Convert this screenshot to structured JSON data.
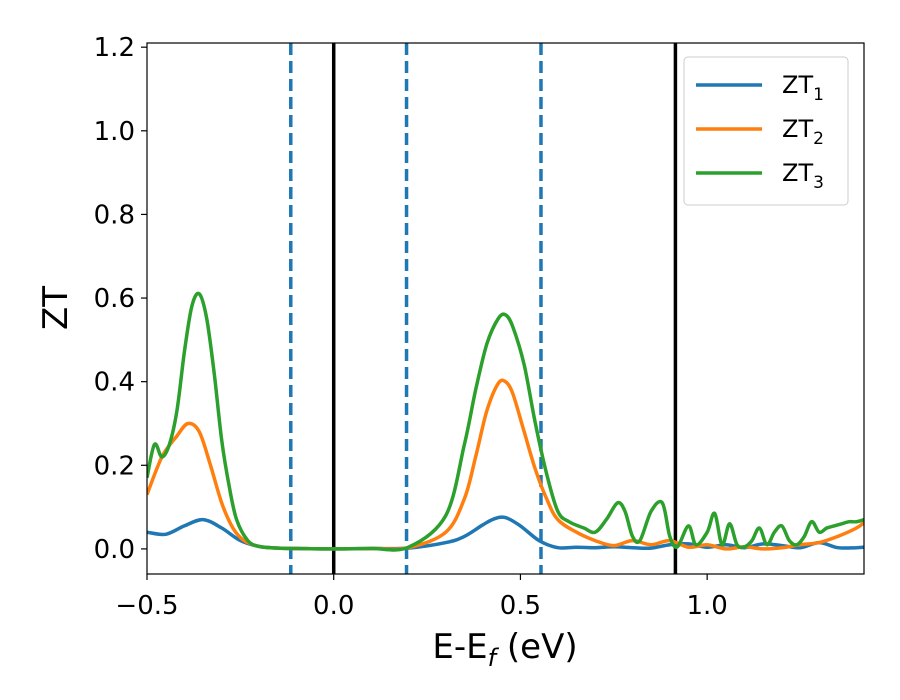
{
  "chart_data": {
    "type": "line",
    "xlabel": "E-E",
    "xlabel_sub": "f",
    "xlabel_unit": " (eV)",
    "ylabel": "ZT",
    "xlim": [
      -0.5,
      1.42
    ],
    "ylim": [
      -0.06,
      1.21
    ],
    "xticks": [
      -0.5,
      0.0,
      0.5,
      1.0
    ],
    "xtick_labels": [
      "−0.5",
      "0.0",
      "0.5",
      "1.0"
    ],
    "yticks": [
      0.0,
      0.2,
      0.4,
      0.6,
      0.8,
      1.0,
      1.2
    ],
    "ytick_labels": [
      "0.0",
      "0.2",
      "0.4",
      "0.6",
      "0.8",
      "1.0",
      "1.2"
    ],
    "grid": false,
    "legend_position": "top-right",
    "vlines_solid": [
      0.0,
      0.915
    ],
    "vlines_dashed": [
      -0.115,
      0.195,
      0.555
    ],
    "series": [
      {
        "name": "ZT",
        "name_sub": "1",
        "color": "#1f77b4",
        "x": [
          -0.5,
          -0.45,
          -0.4,
          -0.35,
          -0.3,
          -0.25,
          -0.2,
          -0.15,
          -0.1,
          0.0,
          0.1,
          0.2,
          0.3,
          0.35,
          0.4,
          0.43,
          0.46,
          0.5,
          0.55,
          0.6,
          0.65,
          0.7,
          0.75,
          0.8,
          0.85,
          0.9,
          0.95,
          1.0,
          1.05,
          1.1,
          1.15,
          1.2,
          1.25,
          1.3,
          1.35,
          1.4,
          1.42
        ],
        "y": [
          0.04,
          0.035,
          0.055,
          0.07,
          0.05,
          0.02,
          0.006,
          0.002,
          0.001,
          0.0,
          0.001,
          0.002,
          0.015,
          0.03,
          0.058,
          0.072,
          0.075,
          0.055,
          0.02,
          0.003,
          0.004,
          0.003,
          0.005,
          0.003,
          0.002,
          0.01,
          0.012,
          0.004,
          0.01,
          0.003,
          0.012,
          0.008,
          0.003,
          0.015,
          0.003,
          0.003,
          0.004
        ]
      },
      {
        "name": "ZT",
        "name_sub": "2",
        "color": "#ff7f0e",
        "x": [
          -0.5,
          -0.46,
          -0.42,
          -0.39,
          -0.36,
          -0.33,
          -0.3,
          -0.27,
          -0.24,
          -0.2,
          -0.15,
          -0.1,
          0.0,
          0.1,
          0.2,
          0.3,
          0.35,
          0.38,
          0.41,
          0.44,
          0.46,
          0.48,
          0.51,
          0.54,
          0.57,
          0.6,
          0.65,
          0.7,
          0.75,
          0.8,
          0.85,
          0.9,
          0.95,
          1.0,
          1.05,
          1.1,
          1.15,
          1.2,
          1.25,
          1.3,
          1.35,
          1.4,
          1.42
        ],
        "y": [
          0.13,
          0.22,
          0.27,
          0.3,
          0.28,
          0.2,
          0.11,
          0.05,
          0.02,
          0.006,
          0.002,
          0.001,
          0.0,
          0.001,
          0.003,
          0.04,
          0.12,
          0.22,
          0.33,
          0.395,
          0.4,
          0.37,
          0.28,
          0.19,
          0.12,
          0.07,
          0.04,
          0.02,
          0.008,
          0.02,
          0.01,
          0.02,
          0.004,
          0.01,
          0.0,
          0.005,
          0.0,
          0.003,
          0.01,
          0.015,
          0.03,
          0.05,
          0.063
        ]
      },
      {
        "name": "ZT",
        "name_sub": "3",
        "color": "#2ca02c",
        "x": [
          -0.5,
          -0.48,
          -0.46,
          -0.44,
          -0.42,
          -0.4,
          -0.38,
          -0.36,
          -0.34,
          -0.32,
          -0.3,
          -0.28,
          -0.26,
          -0.23,
          -0.2,
          -0.15,
          -0.1,
          0.0,
          0.1,
          0.2,
          0.3,
          0.35,
          0.38,
          0.41,
          0.44,
          0.46,
          0.48,
          0.51,
          0.54,
          0.57,
          0.6,
          0.63,
          0.67,
          0.7,
          0.73,
          0.76,
          0.78,
          0.8,
          0.82,
          0.85,
          0.88,
          0.9,
          0.92,
          0.95,
          0.97,
          1.0,
          1.02,
          1.04,
          1.06,
          1.08,
          1.1,
          1.12,
          1.14,
          1.16,
          1.18,
          1.2,
          1.22,
          1.24,
          1.26,
          1.28,
          1.3,
          1.32,
          1.34,
          1.36,
          1.38,
          1.4,
          1.42
        ],
        "y": [
          0.17,
          0.25,
          0.22,
          0.25,
          0.33,
          0.47,
          0.58,
          0.61,
          0.55,
          0.42,
          0.26,
          0.15,
          0.07,
          0.02,
          0.006,
          0.002,
          0.001,
          0.0,
          0.001,
          0.004,
          0.08,
          0.25,
          0.38,
          0.49,
          0.55,
          0.56,
          0.53,
          0.44,
          0.3,
          0.18,
          0.09,
          0.065,
          0.05,
          0.04,
          0.07,
          0.11,
          0.09,
          0.03,
          0.02,
          0.09,
          0.11,
          0.03,
          0.005,
          0.055,
          0.01,
          0.04,
          0.085,
          0.01,
          0.06,
          0.01,
          0.005,
          0.02,
          0.05,
          0.01,
          0.04,
          0.055,
          0.02,
          0.01,
          0.03,
          0.065,
          0.04,
          0.05,
          0.055,
          0.06,
          0.065,
          0.065,
          0.07
        ]
      }
    ]
  }
}
